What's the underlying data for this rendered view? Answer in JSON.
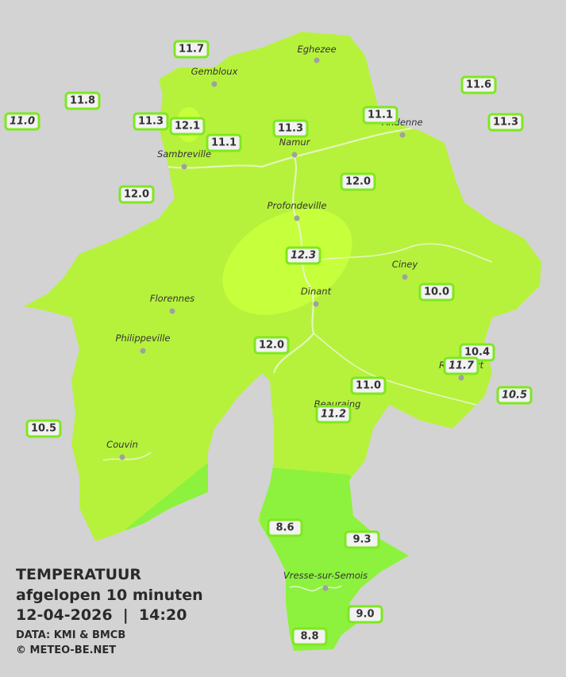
{
  "legend": {
    "title": "TEMPERATUUR",
    "subtitle": "afgelopen 10 minuten",
    "timestamp": "12-04-2026  |  14:20",
    "source": "DATA: KMI & BMCB",
    "credit": "© METEO-BE.NET"
  },
  "towns": [
    "Eghezee",
    "Gembloux",
    "Andenne",
    "Namur",
    "Sambreville",
    "Profondeville",
    "Ciney",
    "Dinant",
    "Florennes",
    "Philippeville",
    "Rochefort",
    "Beauraing",
    "Couvin",
    "Vresse-sur-Semois"
  ],
  "stations": [
    {
      "label": "11.7",
      "italic": false
    },
    {
      "label": "11.8",
      "italic": false
    },
    {
      "label": "11.0",
      "italic": true
    },
    {
      "label": "11.3",
      "italic": false
    },
    {
      "label": "12.1",
      "italic": false
    },
    {
      "label": "11.1",
      "italic": false
    },
    {
      "label": "11.3",
      "italic": false
    },
    {
      "label": "11.1",
      "italic": false
    },
    {
      "label": "11.6",
      "italic": false
    },
    {
      "label": "11.3",
      "italic": false
    },
    {
      "label": "12.0",
      "italic": false
    },
    {
      "label": "12.0",
      "italic": false
    },
    {
      "label": "12.3",
      "italic": true
    },
    {
      "label": "10.0",
      "italic": false
    },
    {
      "label": "12.0",
      "italic": false
    },
    {
      "label": "10.4",
      "italic": false
    },
    {
      "label": "11.7",
      "italic": true
    },
    {
      "label": "11.0",
      "italic": false
    },
    {
      "label": "11.2",
      "italic": true
    },
    {
      "label": "10.5",
      "italic": true
    },
    {
      "label": "10.5",
      "italic": false
    },
    {
      "label": "8.6",
      "italic": false
    },
    {
      "label": "9.3",
      "italic": false
    },
    {
      "label": "9.0",
      "italic": false
    },
    {
      "label": "8.8",
      "italic": false
    }
  ]
}
